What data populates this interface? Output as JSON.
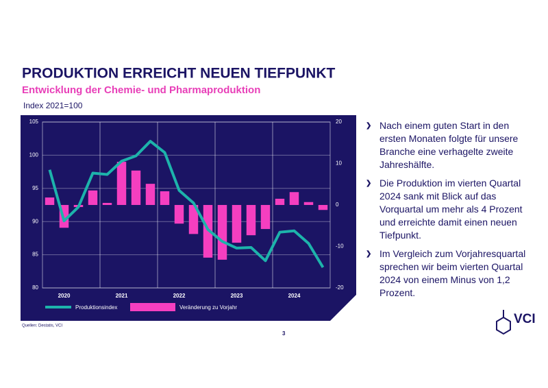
{
  "chart_data": {
    "type": "combo",
    "title": "PRODUKTION ERREICHT NEUEN TIEFPUNKT",
    "subtitle": "Entwicklung der Chemie- und Pharmaproduktion",
    "y_label": "Index 2021=100",
    "categories": [
      null,
      "2020",
      null,
      null,
      null,
      "2021",
      null,
      null,
      null,
      "2022",
      null,
      null,
      null,
      "2023",
      null,
      null,
      null,
      "2024",
      null,
      null
    ],
    "series": [
      {
        "name": "Veränderung zu Vorjahr",
        "kind": "bar",
        "axis": "y2",
        "color": "#f53fc0",
        "values": [
          1.8,
          -5.5,
          -0.5,
          3.5,
          0.5,
          10.4,
          8.3,
          5.1,
          3.3,
          -4.5,
          -7,
          -12.7,
          -13.2,
          -9.1,
          -7.3,
          -5.8,
          1.5,
          3.1,
          0.7,
          -1.2
        ]
      },
      {
        "name": "Produktionsindex",
        "kind": "line",
        "axis": "y",
        "color": "#1db3ab",
        "values": [
          97.8,
          90.1,
          92.2,
          97.3,
          97.1,
          99.1,
          99.9,
          102.1,
          100.4,
          94.7,
          92.8,
          88.8,
          87,
          86,
          86.1,
          84.1,
          88.4,
          88.6,
          86.7,
          83.1
        ]
      }
    ],
    "ylim": [
      80,
      105
    ],
    "yticks": [
      80,
      85,
      90,
      95,
      100,
      105
    ],
    "y2lim": [
      -20,
      20
    ],
    "y2ticks": [
      -20,
      -10,
      0,
      10,
      20
    ],
    "grid": true
  },
  "bullets": [
    "Nach einem guten Start in den ersten Monaten folgte für unsere Branche eine verhagelte zweite Jahreshälfte.",
    "Die Produktion im vierten Quartal 2024 sank mit Blick auf das Vorquartal um mehr als 4 Prozent und erreichte damit einen neuen Tiefpunkt.",
    "Im Vergleich zum Vorjahresquartal sprechen wir beim vierten Quartal 2024 von einem Minus von 1,2 Prozent."
  ],
  "source": "Quellen: Destatis, VCI",
  "page_number": "3",
  "logo": "VCI"
}
